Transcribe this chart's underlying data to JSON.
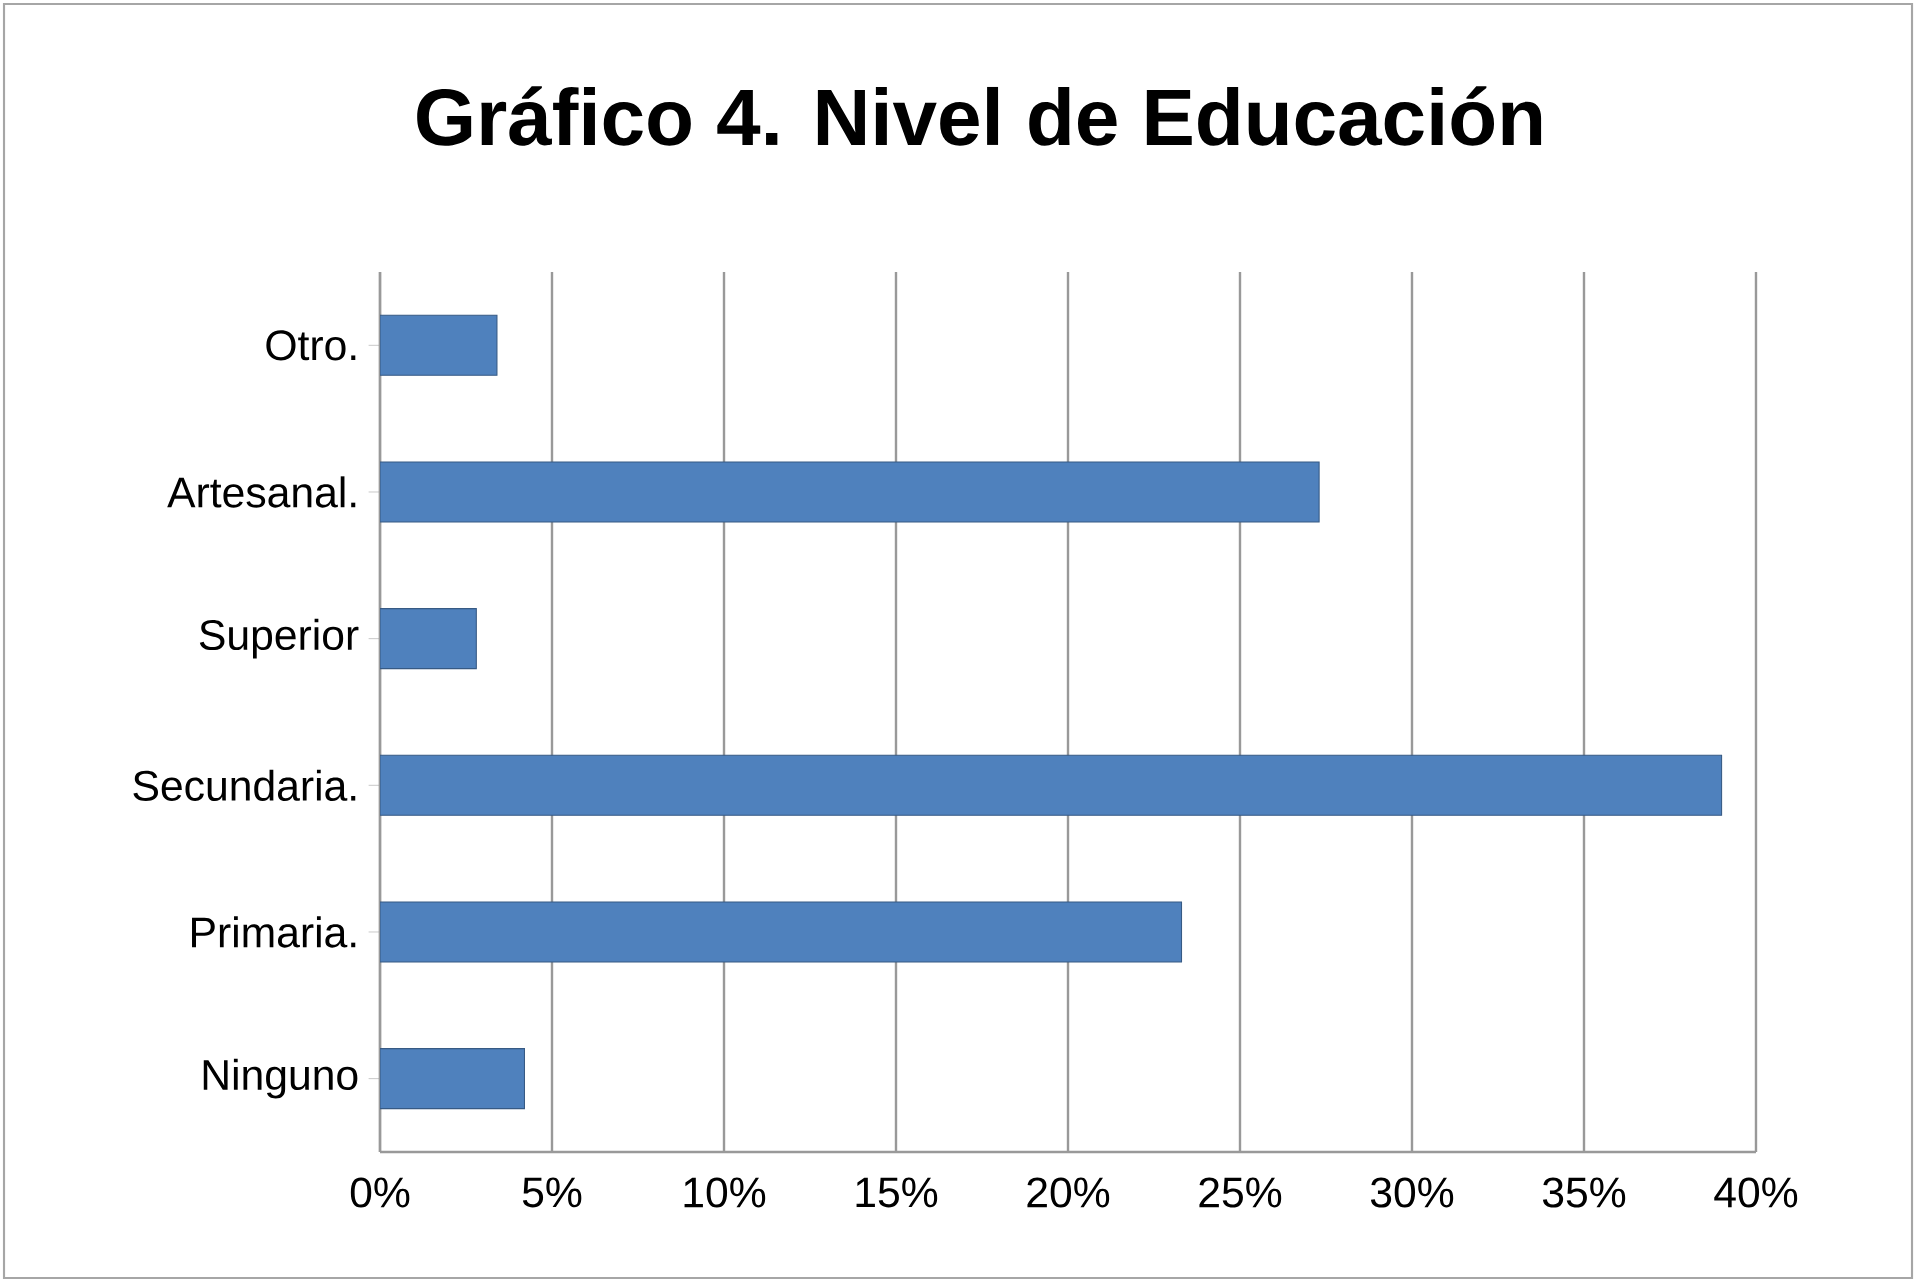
{
  "chart_data": {
    "type": "bar",
    "orientation": "horizontal",
    "title": "Gráfico 4. Nivel de Educación",
    "categories": [
      "Otro.",
      "Artesanal.",
      "Superior",
      "Secundaria.",
      "Primaria.",
      "Ninguno"
    ],
    "values": [
      3.4,
      27.3,
      2.8,
      39,
      23.3,
      4.2
    ],
    "color": "#4f81bd",
    "xlim": [
      0,
      40
    ],
    "xticks": [
      {
        "value": 0,
        "label": "0%"
      },
      {
        "value": 5,
        "label": "5%"
      },
      {
        "value": 10,
        "label": "10%"
      },
      {
        "value": 15,
        "label": "15%"
      },
      {
        "value": 20,
        "label": "20%"
      },
      {
        "value": 25,
        "label": "25%"
      },
      {
        "value": 30,
        "label": "30%"
      },
      {
        "value": 35,
        "label": "35%"
      },
      {
        "value": 40,
        "label": "40%"
      }
    ],
    "grid": "x"
  }
}
